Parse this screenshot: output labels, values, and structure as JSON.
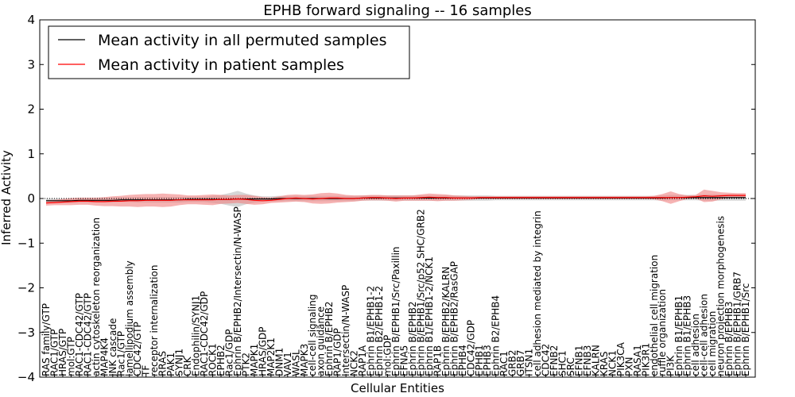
{
  "chart_data": {
    "type": "line",
    "title": "EPHB forward signaling -- 16 samples",
    "xlabel": "Cellular Entities",
    "ylabel": "Inferred Activity",
    "ylim": [
      -4,
      4
    ],
    "yticks": [
      "4",
      "3",
      "2",
      "1",
      "0",
      "−1",
      "−2",
      "−3",
      "−4"
    ],
    "ytick_values": [
      4,
      3,
      2,
      1,
      0,
      -1,
      -2,
      -3,
      -4
    ],
    "grid": false,
    "legend_position": "top-left",
    "colors": {
      "permuted": "#000000",
      "patient": "#ff0000",
      "band_permuted": "#c8c8c8",
      "band_patient": "#f08080"
    },
    "categories": [
      "RAS family/GTP",
      "RAC1/GTP",
      "HRAS/GTP",
      "mol:GTP",
      "RAC1-CDC42/GTP",
      "RAC1-CDC42/GTP",
      "actin cytoskeleton reorganization",
      "MAP4K4",
      "JNK cascade",
      "Rac1/GTP",
      "lamellipodium assembly",
      "CDC42/GTP",
      "TF",
      "receptor internalization",
      "RRAS",
      "PAK1",
      "SYNJ1",
      "CRK",
      "Endophilin/SYNJ1",
      "RAC1-CDC42/GDP",
      "ROCK1",
      "EPHB2",
      "Rac1/GDP",
      "Ephrin B/EPHB2/Intersectin/N-WASP",
      "PTK2",
      "MAPK1",
      "HRAS/GDP",
      "MAP2K1",
      "DNM1",
      "VAV1",
      "WASL",
      "MAPK3",
      "cell-cell signaling",
      "axon guidance",
      "Ephrin B/EPHB2",
      "RAP1/GDP",
      "Intersectin/N-WASP",
      "NCK2",
      "RAP1A",
      "Ephrin B1/EPHB1-2",
      "Ephrin B2/EPHB1-2",
      "mol:GDP",
      "Ephrin B/EPHB1/Src/Paxillin",
      "EFNA5",
      "Ephrin B/EPHB2",
      "Ephrin B/EPHB1/Src/p52 SHC/GRB2",
      "Ephrin B1/EPHB1-2/NCK1",
      "RAP1B",
      "Ephrin B/EPHB2/KALRN",
      "Ephrin B/EPHB2/RasGAP",
      "EPHB4",
      "CDC42/GDP",
      "EPHB1",
      "EPHB3",
      "Ephrin B2/EPHB4",
      "RAC1",
      "GRB2",
      "GRB7",
      "ITSN1",
      "cell adhesion mediated by integrin",
      "CDC42",
      "EFNB2",
      "SHC1",
      "SRC",
      "EFNB1",
      "EFNB3",
      "KALRN",
      "KRAS",
      "NCK1",
      "PIK3CA",
      "PXN",
      "RASA1",
      "PIK3R1",
      "endothelial cell migration",
      "ruffle organization",
      "PI3K",
      "Ephrin B1/EPHB1",
      "Ephrin B1/EPHB3",
      "cell adhesion",
      "cell-cell adhesion",
      "cell migration",
      "neuron projection morphogenesis",
      "Ephrin B/EPHB3",
      "Ephrin B/EPHB1/GRB7",
      "Ephrin B/EPHB1/Src"
    ],
    "series": [
      {
        "name": "Mean activity in all permuted samples",
        "color": "#000000",
        "values": [
          -0.05,
          -0.05,
          -0.05,
          -0.05,
          -0.04,
          -0.04,
          -0.04,
          -0.04,
          -0.04,
          -0.03,
          -0.03,
          -0.03,
          -0.03,
          -0.03,
          -0.03,
          -0.03,
          -0.03,
          -0.02,
          -0.02,
          -0.02,
          -0.02,
          -0.02,
          -0.02,
          -0.01,
          -0.01,
          -0.01,
          -0.01,
          -0.01,
          0.0,
          0.0,
          0.0,
          0.0,
          0.0,
          0.0,
          0.0,
          0.0,
          0.0,
          0.0,
          0.01,
          0.01,
          0.01,
          0.01,
          0.01,
          0.01,
          0.01,
          0.01,
          0.01,
          0.01,
          0.01,
          0.01,
          0.01,
          0.01,
          0.01,
          0.01,
          0.01,
          0.01,
          0.01,
          0.01,
          0.01,
          0.01,
          0.01,
          0.01,
          0.01,
          0.01,
          0.01,
          0.01,
          0.01,
          0.01,
          0.01,
          0.01,
          0.01,
          0.01,
          0.01,
          0.01,
          0.01,
          0.02,
          0.02,
          0.02,
          0.02,
          0.02,
          0.02,
          0.02,
          0.02,
          0.02,
          0.02
        ],
        "band": [
          0.05,
          0.05,
          0.05,
          0.05,
          0.05,
          0.05,
          0.05,
          0.05,
          0.05,
          0.05,
          0.05,
          0.06,
          0.06,
          0.06,
          0.06,
          0.06,
          0.06,
          0.06,
          0.06,
          0.06,
          0.08,
          0.1,
          0.14,
          0.18,
          0.12,
          0.08,
          0.06,
          0.06,
          0.06,
          0.06,
          0.06,
          0.06,
          0.06,
          0.06,
          0.06,
          0.06,
          0.06,
          0.06,
          0.06,
          0.06,
          0.06,
          0.06,
          0.06,
          0.06,
          0.06,
          0.06,
          0.06,
          0.06,
          0.06,
          0.06,
          0.06,
          0.06,
          0.06,
          0.06,
          0.05,
          0.05,
          0.05,
          0.05,
          0.05,
          0.05,
          0.05,
          0.05,
          0.05,
          0.05,
          0.05,
          0.05,
          0.05,
          0.05,
          0.05,
          0.05,
          0.05,
          0.05,
          0.05,
          0.05,
          0.06,
          0.06,
          0.06,
          0.06,
          0.06,
          0.07,
          0.07,
          0.07,
          0.07,
          0.07,
          0.07
        ]
      },
      {
        "name": "Mean activity in patient samples",
        "color": "#ff0000",
        "values": [
          -0.1,
          -0.09,
          -0.08,
          -0.07,
          -0.06,
          -0.06,
          -0.07,
          -0.07,
          -0.06,
          -0.06,
          -0.05,
          -0.05,
          -0.04,
          -0.04,
          -0.04,
          -0.04,
          -0.03,
          -0.03,
          -0.03,
          -0.03,
          -0.03,
          -0.02,
          -0.02,
          -0.01,
          -0.02,
          -0.04,
          -0.05,
          -0.04,
          -0.02,
          0.0,
          0.01,
          0.0,
          -0.01,
          0.0,
          0.01,
          0.01,
          0.0,
          0.0,
          0.01,
          0.02,
          0.02,
          0.01,
          0.0,
          0.01,
          0.01,
          0.02,
          0.03,
          0.02,
          0.02,
          0.01,
          0.01,
          0.01,
          0.02,
          0.02,
          0.02,
          0.02,
          0.02,
          0.02,
          0.02,
          0.02,
          0.02,
          0.02,
          0.02,
          0.02,
          0.02,
          0.02,
          0.02,
          0.02,
          0.02,
          0.02,
          0.02,
          0.02,
          0.02,
          0.02,
          0.02,
          0.02,
          0.02,
          0.03,
          0.04,
          0.06,
          0.05,
          0.06,
          0.07,
          0.07,
          0.07
        ],
        "band": [
          0.06,
          0.06,
          0.07,
          0.08,
          0.08,
          0.08,
          0.09,
          0.1,
          0.11,
          0.12,
          0.13,
          0.14,
          0.14,
          0.14,
          0.15,
          0.14,
          0.12,
          0.1,
          0.1,
          0.11,
          0.12,
          0.1,
          0.09,
          0.09,
          0.1,
          0.1,
          0.08,
          0.06,
          0.07,
          0.08,
          0.08,
          0.08,
          0.1,
          0.12,
          0.12,
          0.1,
          0.08,
          0.07,
          0.06,
          0.06,
          0.06,
          0.06,
          0.07,
          0.06,
          0.06,
          0.07,
          0.08,
          0.08,
          0.07,
          0.06,
          0.05,
          0.04,
          0.03,
          0.03,
          0.03,
          0.03,
          0.03,
          0.03,
          0.03,
          0.03,
          0.03,
          0.03,
          0.03,
          0.03,
          0.03,
          0.03,
          0.03,
          0.03,
          0.03,
          0.03,
          0.03,
          0.03,
          0.03,
          0.04,
          0.08,
          0.14,
          0.08,
          0.04,
          0.04,
          0.14,
          0.12,
          0.08,
          0.06,
          0.05,
          0.05
        ]
      }
    ]
  }
}
